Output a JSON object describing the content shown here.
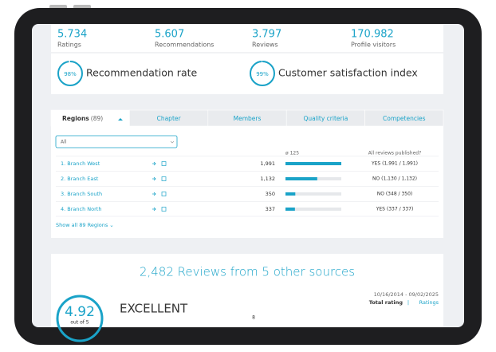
{
  "stats": [
    {
      "value": "5.734",
      "label": "Ratings"
    },
    {
      "value": "5.607",
      "label": "Recommendations"
    },
    {
      "value": "3.797",
      "label": "Reviews"
    },
    {
      "value": "170.982",
      "label": "Profile visitors"
    }
  ],
  "rates": [
    {
      "percent": {
        "value": 98,
        "label": "98%"
      },
      "label": "Recommendation rate"
    },
    {
      "percent": {
        "value": 99,
        "label": "99%"
      },
      "label": "Customer satisfaction index"
    }
  ],
  "tabs": [
    {
      "label": "Regions",
      "count": "(89)"
    },
    {
      "label": "Chapter"
    },
    {
      "label": "Members"
    },
    {
      "label": "Quality criteria"
    },
    {
      "label": "Competencies"
    }
  ],
  "filter": "All",
  "table": {
    "headers": {
      "average": "ø 125",
      "published": "All reviews published?"
    },
    "rows": [
      {
        "name": "1. Branch West",
        "count": {
          "value": 1991,
          "label": "1,991"
        },
        "published": "YES (1,991 / 1,991)"
      },
      {
        "name": "2. Branch East",
        "count": {
          "value": 1132,
          "label": "1,132"
        },
        "published": "NO (1,130 / 1,132)"
      },
      {
        "name": "3. Branch South",
        "count": {
          "value": 350,
          "label": "350"
        },
        "published": "NO (348 / 350)"
      },
      {
        "name": "4. Branch North",
        "count": {
          "value": 337,
          "label": "337"
        },
        "published": "YES (337 / 337)"
      }
    ]
  },
  "show_all": "Show all 89 Regions ⌄",
  "sources": {
    "title": "2,482 Reviews from 5 other sources",
    "score": "4.92",
    "scale": "out of 5",
    "verdict": "EXCELLENT",
    "period": "10/16/2014 - 09/02/2025",
    "total_rating": "Total rating",
    "separator": "|",
    "ratings": "Ratings",
    "axis_label": "8"
  }
}
